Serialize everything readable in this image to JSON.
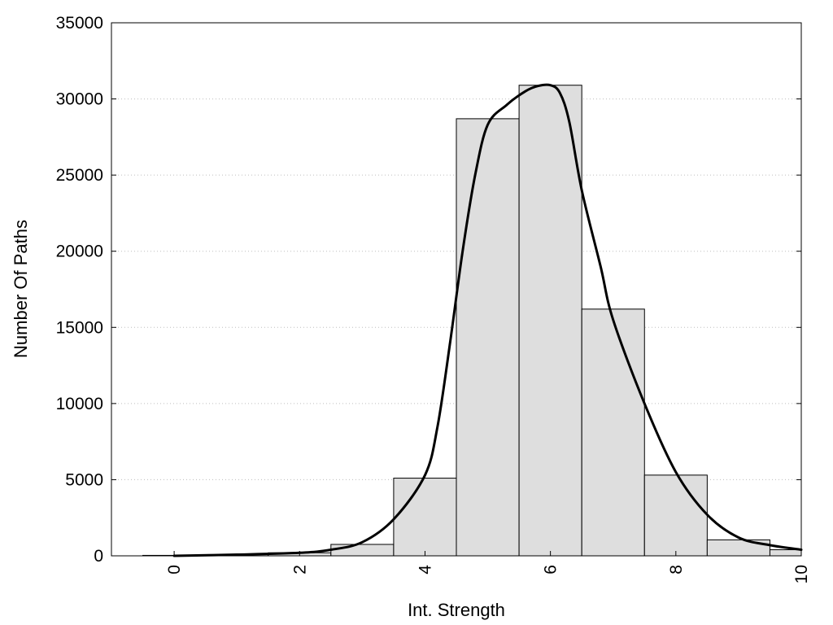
{
  "chart_data": {
    "type": "bar",
    "title": "",
    "xlabel": "Int. Strength",
    "ylabel": "Number Of Paths",
    "xlim": [
      -1,
      10
    ],
    "ylim": [
      0,
      35000
    ],
    "xticks": [
      0,
      2,
      4,
      6,
      8,
      10
    ],
    "yticks": [
      0,
      5000,
      10000,
      15000,
      20000,
      25000,
      30000,
      35000
    ],
    "grid": "horizontal-dotted",
    "legend": "none",
    "bin_width": 1,
    "bins": [
      {
        "center": 0,
        "value": 30
      },
      {
        "center": 1,
        "value": 80
      },
      {
        "center": 2,
        "value": 200
      },
      {
        "center": 3,
        "value": 750
      },
      {
        "center": 4,
        "value": 5100
      },
      {
        "center": 5,
        "value": 28700
      },
      {
        "center": 6,
        "value": 30900
      },
      {
        "center": 7,
        "value": 16200
      },
      {
        "center": 8,
        "value": 5300
      },
      {
        "center": 9,
        "value": 1050
      },
      {
        "center": 10,
        "value": 400
      }
    ],
    "fit_curve": {
      "type": "line",
      "x": [
        0,
        1,
        2,
        2.5,
        3,
        3.5,
        4,
        4.2,
        4.4,
        4.6,
        4.8,
        5,
        5.3,
        5.6,
        5.8,
        6,
        6.15,
        6.3,
        6.5,
        6.8,
        7,
        7.5,
        8,
        8.5,
        9,
        9.5,
        10
      ],
      "y": [
        0,
        80,
        200,
        400,
        900,
        2400,
        5300,
        8500,
        14000,
        20000,
        25000,
        28300,
        29600,
        30500,
        30850,
        30900,
        30400,
        28500,
        24000,
        19000,
        15500,
        10000,
        5500,
        2700,
        1200,
        700,
        400
      ]
    }
  }
}
